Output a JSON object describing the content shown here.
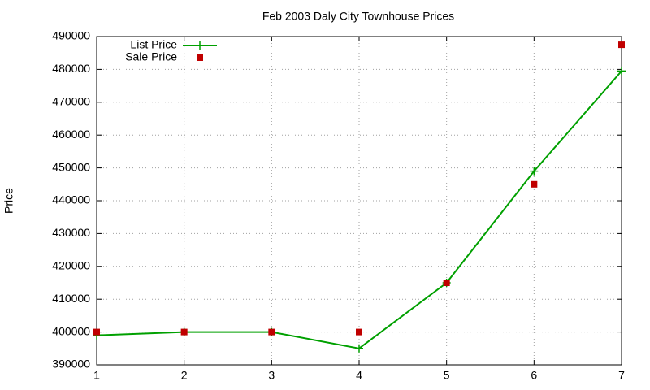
{
  "chart_data": {
    "type": "line",
    "title": "Feb 2003 Daly City Townhouse Prices",
    "y_label": "Price",
    "x": [
      1,
      2,
      3,
      4,
      5,
      6,
      7
    ],
    "series": [
      {
        "name": "List Price",
        "color": "#00a000",
        "marker": "plus",
        "line": true,
        "values": [
          399000,
          400000,
          400000,
          395000,
          415000,
          449000,
          479500
        ]
      },
      {
        "name": "Sale Price",
        "color": "#c00000",
        "marker": "square",
        "line": false,
        "values": [
          400000,
          400000,
          400000,
          400000,
          415000,
          445000,
          487500
        ]
      }
    ],
    "xlim": [
      1,
      7
    ],
    "xticks": [
      1,
      2,
      3,
      4,
      5,
      6,
      7
    ],
    "ylim": [
      390000,
      490000
    ],
    "yticks": [
      390000,
      400000,
      410000,
      420000,
      430000,
      440000,
      450000,
      460000,
      470000,
      480000,
      490000
    ],
    "grid": true,
    "legend": "top-left"
  }
}
